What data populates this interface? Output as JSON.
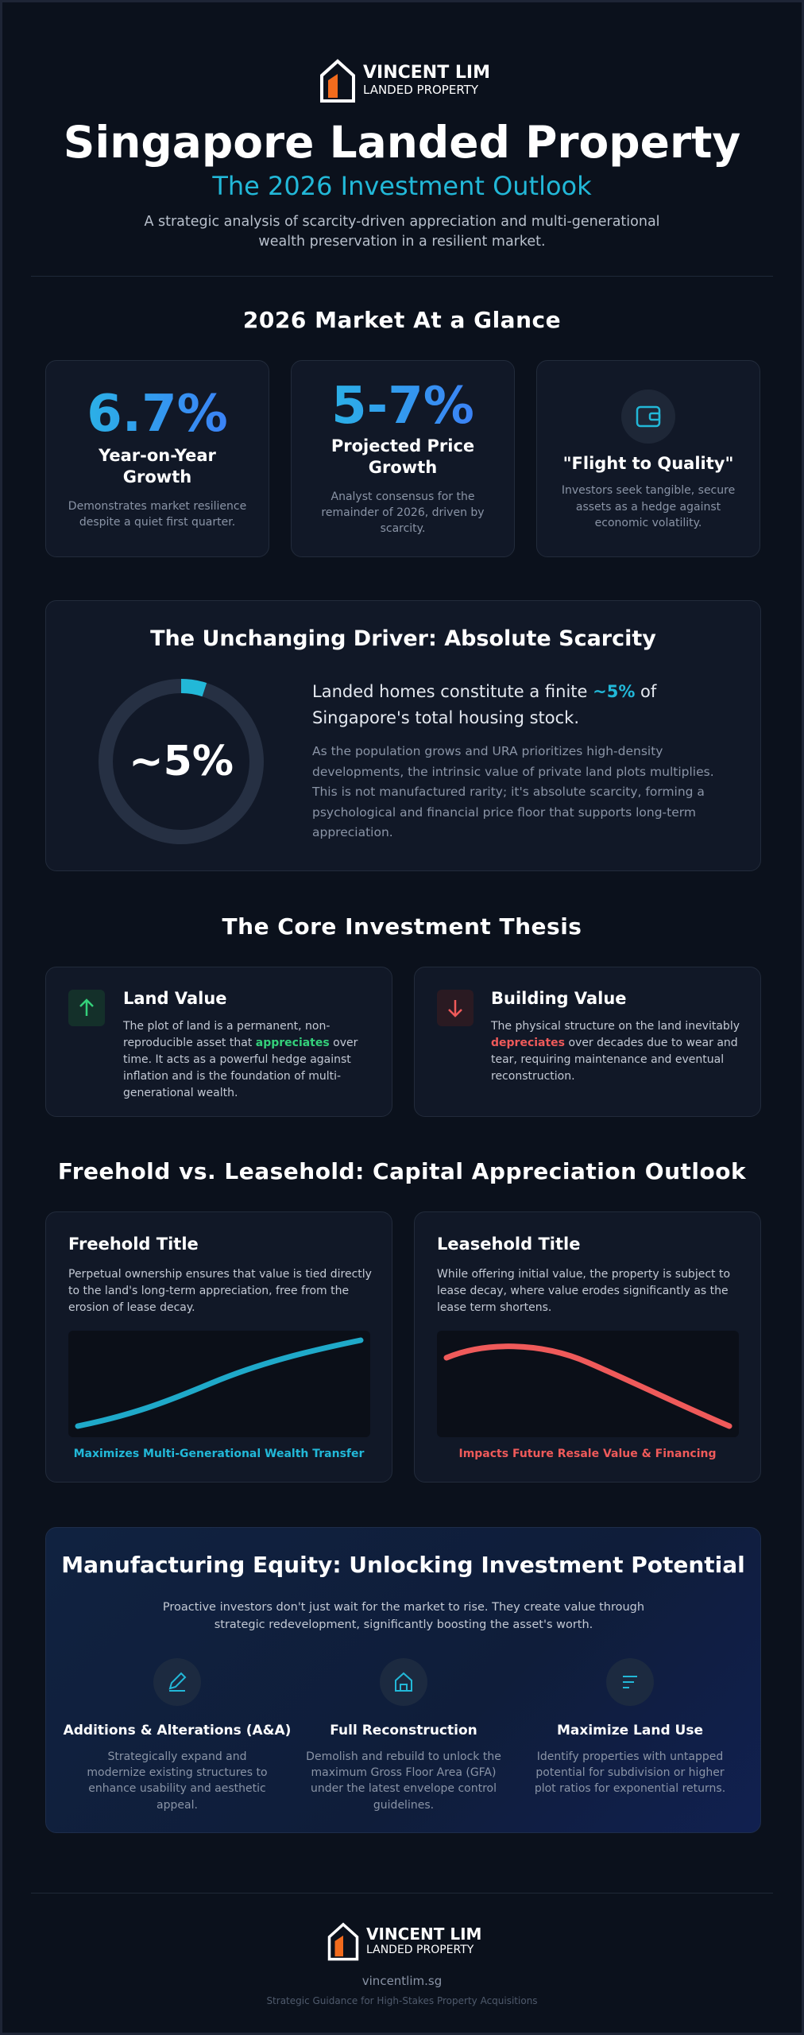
{
  "header": {
    "brand_name": "VINCENT LIM",
    "brand_sub": "LANDED PROPERTY",
    "title": "Singapore Landed Property",
    "subtitle": "The 2026 Investment Outlook",
    "description": "A strategic analysis of scarcity-driven appreciation and multi-generational wealth preservation in a resilient market."
  },
  "glance": {
    "heading": "2026 Market At a Glance",
    "cards": [
      {
        "value": "6.7%",
        "label": "Year-on-Year Growth",
        "text": "Demonstrates market resilience despite a quiet first quarter."
      },
      {
        "value": "5-7%",
        "label": "Projected Price Growth",
        "text": "Analyst consensus for the remainder of 2026, driven by scarcity."
      },
      {
        "label": "\"Flight to Quality\"",
        "text": "Investors seek tangible, secure assets as a hedge against economic volatility."
      }
    ]
  },
  "scarcity": {
    "heading": "The Unchanging Driver: Absolute Scarcity",
    "ring_label": "~5%",
    "ring_value": 5,
    "lead_before": "Landed homes constitute a finite ",
    "lead_highlight": "~5%",
    "lead_after": " of Singapore's total housing stock.",
    "body": "As the population grows and URA prioritizes high-density developments, the intrinsic value of private land plots multiplies. This is not manufactured rarity; it's absolute scarcity, forming a psychological and financial price floor that supports long-term appreciation."
  },
  "thesis": {
    "heading": "The Core Investment Thesis",
    "cards": [
      {
        "title": "Land Value",
        "text_before": "The plot of land is a permanent, non-reproducible asset that ",
        "highlight": "appreciates",
        "text_after": " over time. It acts as a powerful hedge against inflation and is the foundation of multi-generational wealth."
      },
      {
        "title": "Building Value",
        "text_before": "The physical structure on the land inevitably ",
        "highlight": "depreciates",
        "text_after": " over decades due to wear and tear, requiring maintenance and eventual reconstruction."
      }
    ]
  },
  "tenure": {
    "heading": "Freehold vs. Leasehold: Capital Appreciation Outlook",
    "cards": [
      {
        "title": "Freehold Title",
        "text": "Perpetual ownership ensures that value is tied directly to the land's long-term appreciation, free from the erosion of lease decay.",
        "caption": "Maximizes Multi-Generational Wealth Transfer"
      },
      {
        "title": "Leasehold Title",
        "text": "While offering initial value, the property is subject to lease decay, where value erodes significantly as the lease term shortens.",
        "caption": "Impacts Future Resale Value & Financing"
      }
    ]
  },
  "equity": {
    "heading": "Manufacturing Equity: Unlocking Investment Potential",
    "intro": "Proactive investors don't just wait for the market to rise. They create value through strategic redevelopment, significantly boosting the asset's worth.",
    "items": [
      {
        "title": "Additions & Alterations (A&A)",
        "text": "Strategically expand and modernize existing structures to enhance usability and aesthetic appeal."
      },
      {
        "title": "Full Reconstruction",
        "text": "Demolish and rebuild to unlock the maximum Gross Floor Area (GFA) under the latest envelope control guidelines."
      },
      {
        "title": "Maximize Land Use",
        "text": "Identify properties with untapped potential for subdivision or higher plot ratios for exponential returns."
      }
    ]
  },
  "footer": {
    "brand_name": "VINCENT LIM",
    "brand_sub": "LANDED PROPERTY",
    "url": "vincentlim.sg",
    "tagline": "Strategic Guidance for High-Stakes Property Acquisitions"
  }
}
